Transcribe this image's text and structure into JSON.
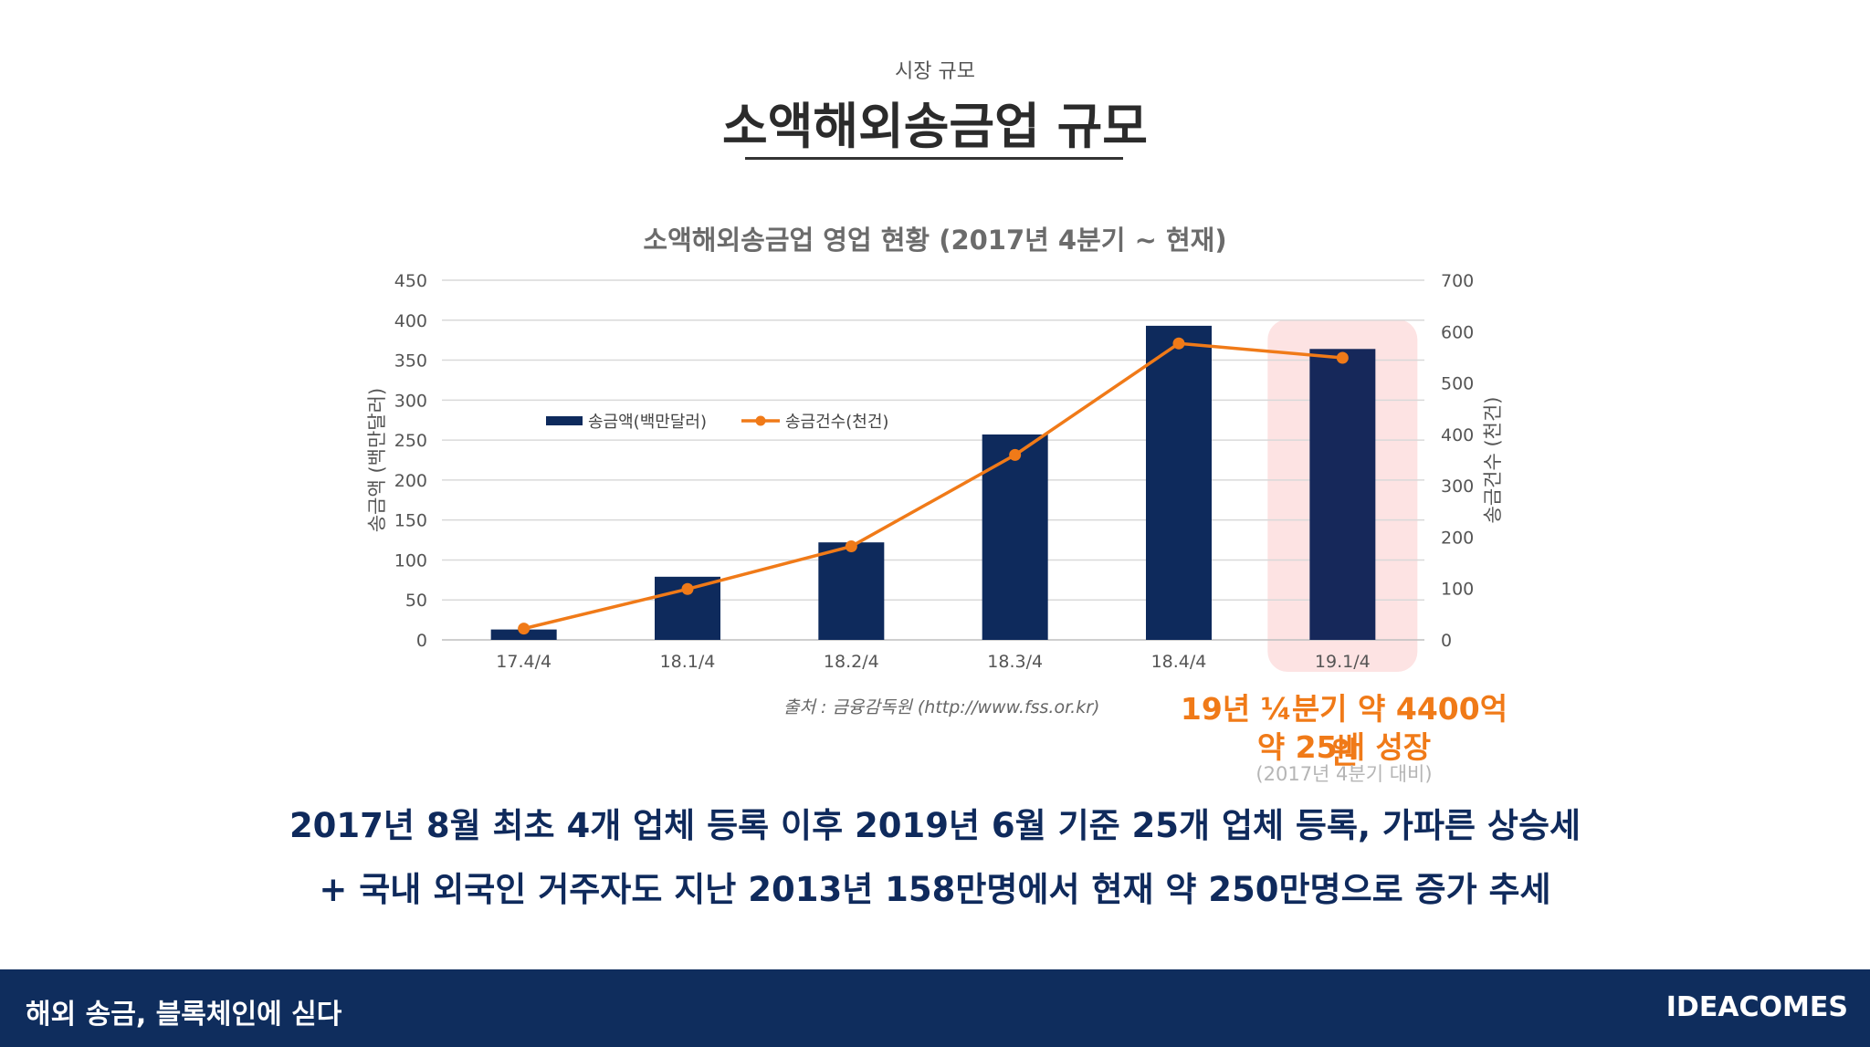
{
  "header": {
    "subtitle": "시장 규모",
    "title": "소액해외송금업 규모"
  },
  "chart_data": {
    "type": "bar+line",
    "title": "소액해외송금업 영업 현황 (2017년 4분기 ~ 현재)",
    "categories": [
      "17.4/4",
      "18.1/4",
      "18.2/4",
      "18.3/4",
      "18.4/4",
      "19.1/4"
    ],
    "series": [
      {
        "name": "송금액(백만달러)",
        "type": "bar",
        "axis": "left",
        "color": "#0e2a5c",
        "values": [
          13,
          79,
          122,
          257,
          393,
          364
        ]
      },
      {
        "name": "송금건수(천건)",
        "type": "line",
        "axis": "right",
        "color": "#f07a18",
        "values": [
          22,
          99,
          182,
          360,
          577,
          549
        ]
      }
    ],
    "ylabel_left": "송금액 (백만달러)",
    "ylabel_right": "송금건수 (천건)",
    "ylim_left": [
      0,
      450
    ],
    "ylim_right": [
      0,
      700
    ],
    "yticks_left": [
      "0",
      "50",
      "100",
      "150",
      "200",
      "250",
      "300",
      "350",
      "400",
      "450"
    ],
    "yticks_right": [
      "0",
      "100",
      "200",
      "300",
      "400",
      "500",
      "600",
      "700"
    ],
    "highlight_category": "19.1/4",
    "grid": true,
    "legend": "top-left"
  },
  "source": "출처 : 금융감독원 (http://www.fss.or.kr)",
  "callout": {
    "line1": "19년 ¼분기 약 4400억원",
    "line2": "약 25배 성장",
    "note": "(2017년 4분기 대비)"
  },
  "body": {
    "line1": "2017년 8월 최초 4개 업체 등록 이후 2019년 6월 기준 25개 업체 등록, 가파른 상승세",
    "line2": "+ 국내 외국인 거주자도 지난 2013년 158만명에서 현재 약 250만명으로 증가 추세"
  },
  "footer": {
    "left": "해외 송금, 블록체인에 싣다",
    "right": "IDEACOMES"
  },
  "colors": {
    "navy": "#0e2a5c",
    "orange": "#f07a18",
    "highlight": "#fde3e3",
    "footer_bg": "#0f2d5d"
  }
}
